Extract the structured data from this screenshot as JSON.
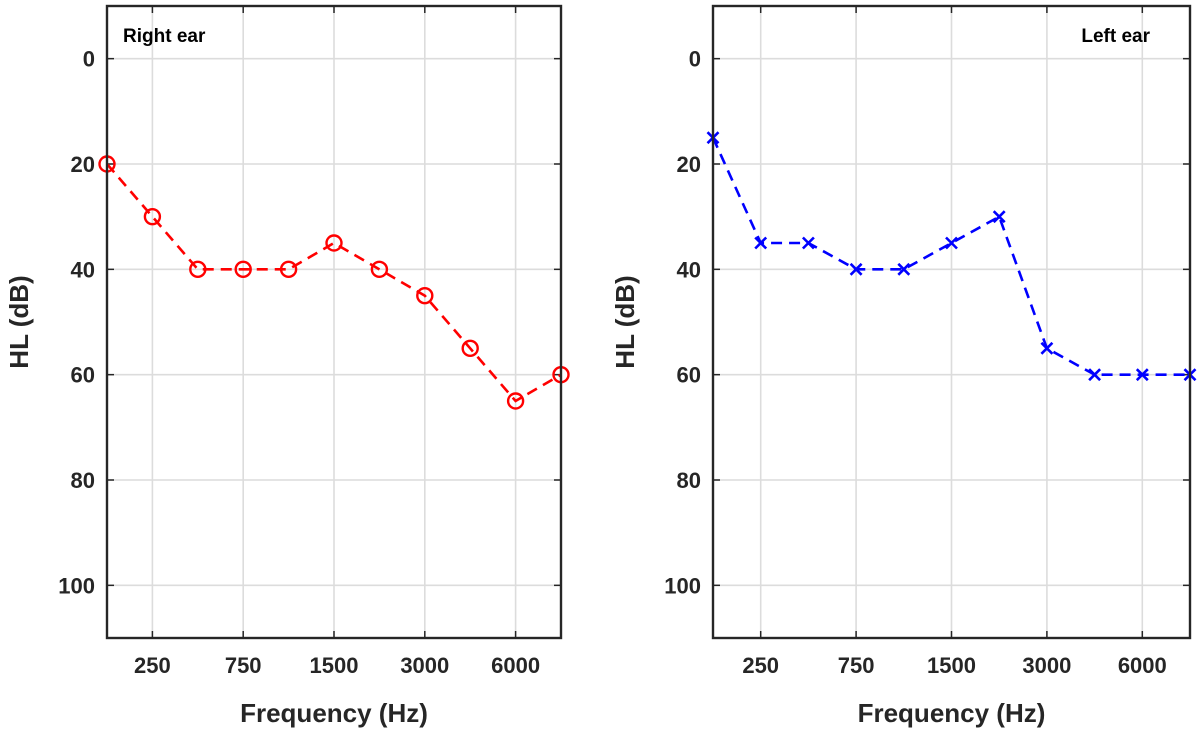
{
  "chart_data": [
    {
      "type": "line",
      "title": "Right ear",
      "xlabel": "Frequency (Hz)",
      "ylabel": "HL (dB)",
      "y_reversed": true,
      "ylim": [
        -10,
        110
      ],
      "yticks": [
        0,
        20,
        40,
        60,
        80,
        100
      ],
      "xtick_labels": [
        "250",
        "750",
        "1500",
        "3000",
        "6000"
      ],
      "x_index_range": [
        0,
        10
      ],
      "xtick_positions": [
        1,
        3,
        5,
        7,
        9
      ],
      "grid": true,
      "title_placement": "top-left",
      "series": [
        {
          "color": "#ff0000",
          "marker": "circle",
          "line_style": "dashed",
          "x": [
            0,
            1,
            2,
            3,
            4,
            5,
            6,
            7,
            8,
            9,
            10
          ],
          "values": [
            20,
            30,
            40,
            40,
            40,
            35,
            40,
            45,
            55,
            65,
            60
          ]
        }
      ]
    },
    {
      "type": "line",
      "title": "Left ear",
      "xlabel": "Frequency (Hz)",
      "ylabel": "HL (dB)",
      "y_reversed": true,
      "ylim": [
        -10,
        110
      ],
      "yticks": [
        0,
        20,
        40,
        60,
        80,
        100
      ],
      "xtick_labels": [
        "250",
        "750",
        "1500",
        "3000",
        "6000"
      ],
      "x_index_range": [
        0,
        10
      ],
      "xtick_positions": [
        1,
        3,
        5,
        7,
        9
      ],
      "grid": true,
      "title_placement": "top-right",
      "series": [
        {
          "color": "#0000ff",
          "marker": "x",
          "line_style": "dashed",
          "x": [
            0,
            1,
            2,
            3,
            4,
            5,
            6,
            7,
            8,
            9,
            10
          ],
          "values": [
            15,
            35,
            35,
            40,
            40,
            35,
            30,
            55,
            60,
            60,
            60
          ]
        }
      ]
    }
  ]
}
